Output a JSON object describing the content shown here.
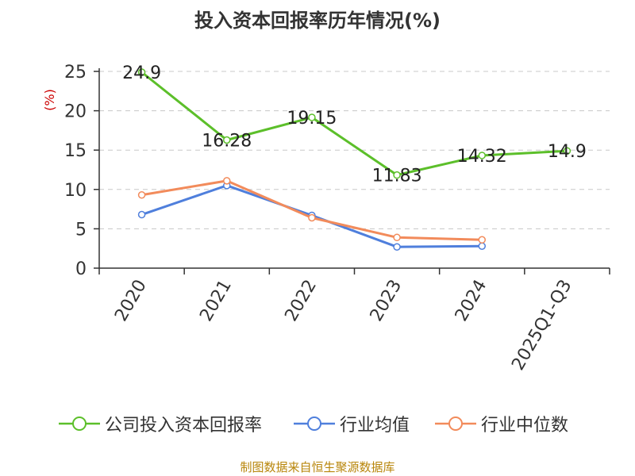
{
  "chart_data": {
    "type": "line",
    "title": "投入资本回报率历年情况(%)",
    "ylabel": "(%)",
    "xlabel": "",
    "categories": [
      "2020",
      "2021",
      "2022",
      "2023",
      "2024",
      "2025Q1-Q3"
    ],
    "ylim": [
      0,
      25
    ],
    "yticks": [
      0,
      5,
      10,
      15,
      20,
      25
    ],
    "grid": true,
    "legend_position": "bottom",
    "series": [
      {
        "name": "公司投入资本回报率",
        "color": "#5cbf2a",
        "values": [
          24.9,
          16.28,
          19.15,
          11.83,
          14.32,
          14.9
        ],
        "labels": [
          "24.9",
          "16.28",
          "19.15",
          "11.83",
          "14.32",
          "14.9"
        ]
      },
      {
        "name": "行业均值",
        "color": "#4f7fdc",
        "values": [
          6.8,
          10.5,
          6.7,
          2.7,
          2.8,
          null
        ]
      },
      {
        "name": "行业中位数",
        "color": "#f28b5b",
        "values": [
          9.3,
          11.1,
          6.4,
          3.9,
          3.6,
          null
        ]
      }
    ]
  },
  "source": "制图数据来自恒生聚源数据库"
}
